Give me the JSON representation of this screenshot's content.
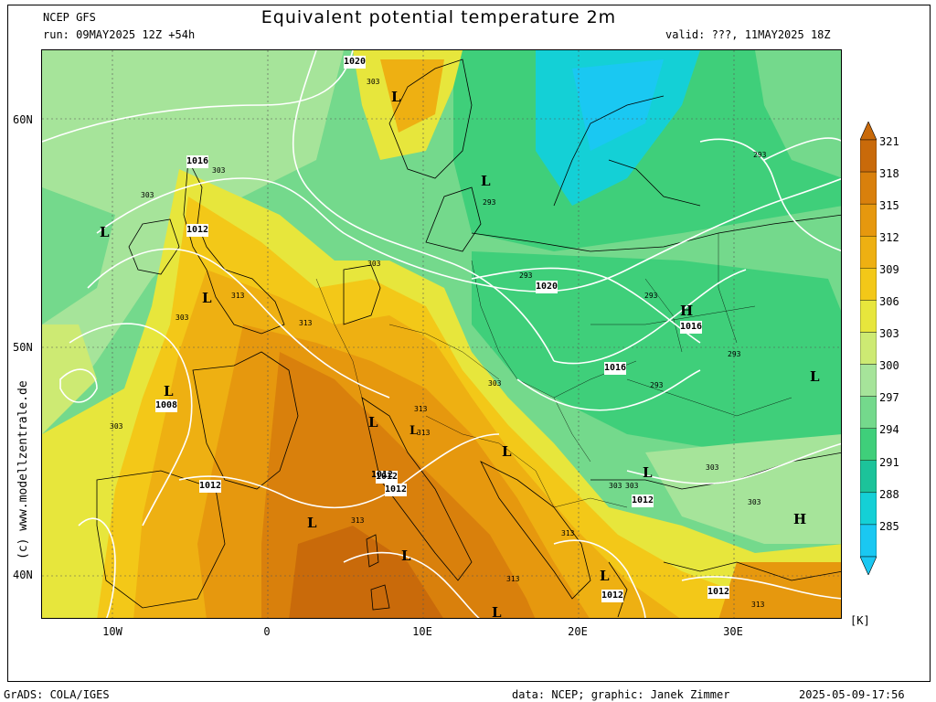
{
  "header": {
    "model": "NCEP GFS",
    "run": "run: 09MAY2025 12Z +54h",
    "title": "Equivalent potential temperature 2m",
    "valid": "valid: ???, 11MAY2025 18Z"
  },
  "axes": {
    "lat_labels": [
      "60N",
      "50N",
      "40N"
    ],
    "lon_labels": [
      "10W",
      "0",
      "10E",
      "20E",
      "30E"
    ]
  },
  "colorbar": {
    "unit": "[K]",
    "levels": [
      "321",
      "318",
      "315",
      "312",
      "309",
      "306",
      "303",
      "300",
      "297",
      "294",
      "291",
      "288",
      "285"
    ],
    "colors": [
      "#c96a0a",
      "#d9800c",
      "#e6980e",
      "#eeb012",
      "#f3c818",
      "#e7e63c",
      "#cdea73",
      "#a6e49a",
      "#74d98c",
      "#3fcf7a",
      "#1cc39a",
      "#14d0d6",
      "#1ac8f2"
    ]
  },
  "map_labels": {
    "isobars": [
      "1020",
      "1016",
      "1012",
      "1012",
      "1008",
      "1012",
      "1012",
      "1012",
      "1020",
      "1016",
      "1016",
      "1012",
      "1012",
      "1012"
    ],
    "theta_e": [
      "303",
      "303",
      "303",
      "313",
      "303",
      "303",
      "313",
      "313",
      "293",
      "293",
      "293",
      "293",
      "303",
      "313",
      "303",
      "293",
      "303",
      "303",
      "313",
      "313",
      "313",
      "293",
      "303",
      "303",
      "313"
    ],
    "pressure_centers": [
      "L",
      "L",
      "L",
      "L",
      "L",
      "L",
      "L",
      "L",
      "L",
      "L",
      "L",
      "L",
      "L",
      "H",
      "H",
      "L"
    ]
  },
  "copyright": "(c) www.modellzentrale.de",
  "footer": {
    "left": "GrADS: COLA/IGES",
    "center": "data: NCEP; graphic: Janek Zimmer",
    "right": "2025-05-09-17:56"
  }
}
